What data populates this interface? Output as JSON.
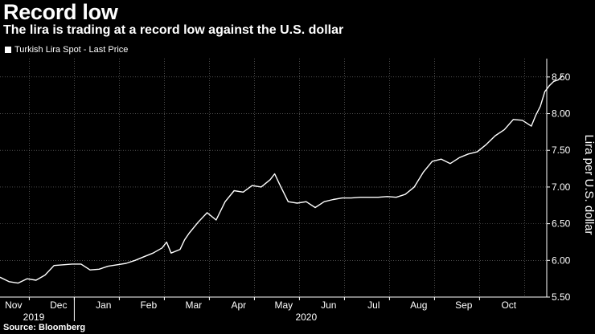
{
  "chart_data": {
    "type": "line",
    "title": "Record low",
    "subtitle": "The lira is trading at a record low against the U.S. dollar",
    "legend": [
      "Turkish Lira Spot - Last Price"
    ],
    "legend_position": "top-left",
    "ylabel": "Lira per U.S. dollar",
    "ylim": [
      5.5,
      8.75
    ],
    "yticks": [
      5.5,
      6.0,
      6.5,
      7.0,
      7.5,
      8.0,
      8.5
    ],
    "ytick_labels": [
      "5.50",
      "6.00",
      "6.50",
      "7.00",
      "7.50",
      "8.00",
      "8.50"
    ],
    "month_labels": [
      "Nov",
      "Dec",
      "Jan",
      "Feb",
      "Mar",
      "Apr",
      "May",
      "Jun",
      "Jul",
      "Aug",
      "Sep",
      "Oct"
    ],
    "year_labels": [
      "2019",
      "2020"
    ],
    "grid": true,
    "x_range": [
      0,
      12.6
    ],
    "series": [
      {
        "name": "Turkish Lira Spot - Last Price",
        "x": [
          0.0,
          0.2,
          0.4,
          0.6,
          0.8,
          1.0,
          1.2,
          1.4,
          1.6,
          1.8,
          2.0,
          2.2,
          2.4,
          2.6,
          2.8,
          3.0,
          3.2,
          3.4,
          3.6,
          3.7,
          3.8,
          4.0,
          4.1,
          4.2,
          4.4,
          4.6,
          4.8,
          5.0,
          5.2,
          5.4,
          5.6,
          5.8,
          6.0,
          6.1,
          6.2,
          6.4,
          6.6,
          6.8,
          7.0,
          7.2,
          7.4,
          7.6,
          7.8,
          8.0,
          8.2,
          8.4,
          8.6,
          8.8,
          9.0,
          9.2,
          9.4,
          9.6,
          9.8,
          10.0,
          10.2,
          10.4,
          10.6,
          10.8,
          11.0,
          11.2,
          11.4,
          11.6,
          11.8,
          11.9,
          12.0,
          12.1,
          12.2,
          12.3,
          12.4,
          12.5
        ],
        "values": [
          5.77,
          5.71,
          5.69,
          5.75,
          5.73,
          5.8,
          5.93,
          5.94,
          5.95,
          5.95,
          5.87,
          5.88,
          5.92,
          5.94,
          5.96,
          6.0,
          6.05,
          6.1,
          6.17,
          6.25,
          6.1,
          6.15,
          6.28,
          6.37,
          6.52,
          6.65,
          6.55,
          6.8,
          6.95,
          6.93,
          7.02,
          7.0,
          7.1,
          7.18,
          7.05,
          6.8,
          6.78,
          6.8,
          6.72,
          6.8,
          6.83,
          6.85,
          6.85,
          6.86,
          6.86,
          6.86,
          6.87,
          6.86,
          6.9,
          7.0,
          7.2,
          7.35,
          7.38,
          7.32,
          7.4,
          7.45,
          7.48,
          7.58,
          7.7,
          7.78,
          7.92,
          7.91,
          7.83,
          7.98,
          8.1,
          8.3,
          8.38,
          8.44,
          8.46,
          8.52
        ]
      }
    ]
  },
  "source": "Source: Bloomberg"
}
